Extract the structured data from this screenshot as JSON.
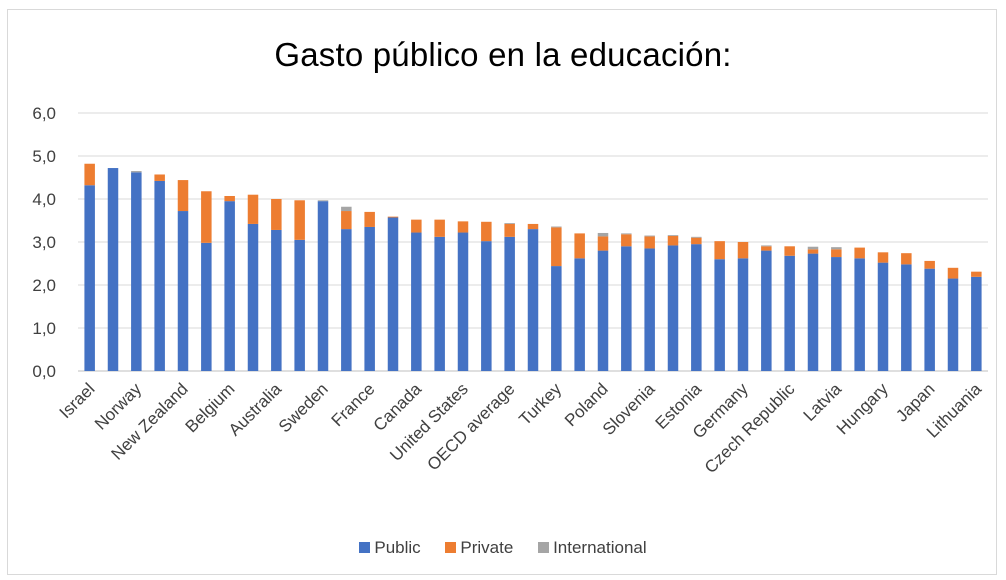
{
  "chart_data": {
    "type": "bar",
    "stacked": true,
    "title": "Gasto público en la educación:",
    "xlabel": "",
    "ylabel": "",
    "ylim": [
      0,
      6
    ],
    "y_ticks": [
      "0,0",
      "1,0",
      "2,0",
      "3,0",
      "4,0",
      "5,0",
      "6,0"
    ],
    "grid": true,
    "legend_position": "bottom",
    "categories": [
      "Israel",
      "",
      "Norway",
      "",
      "New Zealand",
      "",
      "Belgium",
      "",
      "Australia",
      "",
      "Sweden",
      "",
      "France",
      "",
      "Canada",
      "",
      "United States",
      "",
      "OECD average",
      "",
      "Turkey",
      "",
      "Poland",
      "",
      "Slovenia",
      "",
      "Estonia",
      "",
      "Germany",
      "",
      "Czech Republic",
      "",
      "Latvia",
      "",
      "Hungary",
      "",
      "Japan",
      "",
      "Lithuania"
    ],
    "series": [
      {
        "name": "Public",
        "color": "#4472c4",
        "values": [
          4.32,
          4.72,
          4.62,
          4.42,
          3.72,
          2.98,
          3.95,
          3.42,
          3.28,
          3.05,
          3.95,
          3.3,
          3.35,
          3.57,
          3.22,
          3.12,
          3.22,
          3.02,
          3.12,
          3.3,
          2.44,
          2.62,
          2.8,
          2.9,
          2.85,
          2.92,
          2.95,
          2.6,
          2.62,
          2.8,
          2.68,
          2.73,
          2.65,
          2.62,
          2.52,
          2.48,
          2.38,
          2.15,
          2.19
        ]
      },
      {
        "name": "Private",
        "color": "#ed7d31",
        "values": [
          0.5,
          0.0,
          0.0,
          0.15,
          0.72,
          1.2,
          0.12,
          0.68,
          0.72,
          0.92,
          0.0,
          0.42,
          0.35,
          0.02,
          0.3,
          0.4,
          0.26,
          0.45,
          0.3,
          0.12,
          0.9,
          0.58,
          0.33,
          0.28,
          0.28,
          0.22,
          0.15,
          0.42,
          0.38,
          0.1,
          0.22,
          0.1,
          0.18,
          0.25,
          0.24,
          0.26,
          0.18,
          0.25,
          0.12
        ]
      },
      {
        "name": "International",
        "color": "#a5a5a5",
        "values": [
          0.0,
          0.0,
          0.03,
          0.0,
          0.0,
          0.0,
          0.0,
          0.0,
          0.0,
          0.0,
          0.02,
          0.1,
          0.0,
          0.0,
          0.0,
          0.0,
          0.0,
          0.0,
          0.02,
          0.0,
          0.02,
          0.0,
          0.08,
          0.02,
          0.02,
          0.02,
          0.02,
          0.0,
          0.0,
          0.02,
          0.0,
          0.06,
          0.05,
          0.0,
          0.0,
          0.0,
          0.0,
          0.0,
          0.0
        ]
      }
    ]
  }
}
